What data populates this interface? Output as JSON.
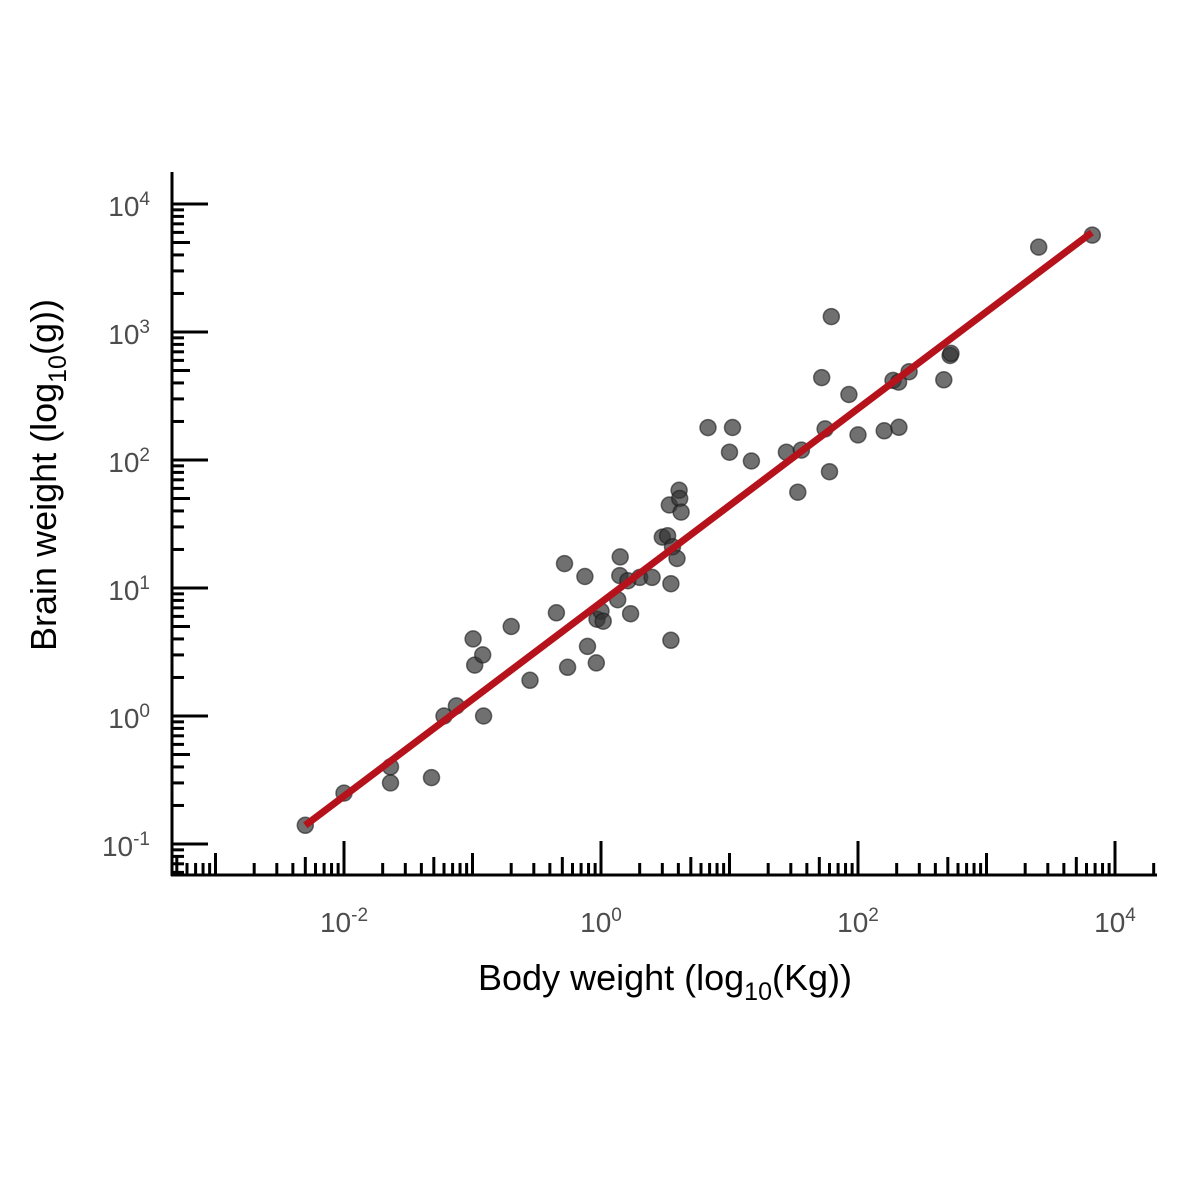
{
  "chart_data": {
    "type": "scatter",
    "title": "",
    "xlabel": {
      "main": "Body weight (log",
      "sub": "10",
      "end": "(Kg))"
    },
    "ylabel": {
      "main": "Brain weight (log",
      "sub": "10",
      "end": "(g))"
    },
    "x_scale": "log10",
    "y_scale": "log10",
    "xlim": [
      0.00045,
      25000
    ],
    "ylim": [
      0.055,
      17000
    ],
    "x_ticks": [
      {
        "value": 0.01,
        "base": "10",
        "exp": "-2"
      },
      {
        "value": 1,
        "base": "10",
        "exp": "0"
      },
      {
        "value": 100,
        "base": "10",
        "exp": "2"
      },
      {
        "value": 10000,
        "base": "10",
        "exp": "4"
      }
    ],
    "y_ticks": [
      {
        "value": 0.1,
        "base": "10",
        "exp": "-1"
      },
      {
        "value": 1,
        "base": "10",
        "exp": "0"
      },
      {
        "value": 10,
        "base": "10",
        "exp": "1"
      },
      {
        "value": 100,
        "base": "10",
        "exp": "2"
      },
      {
        "value": 1000,
        "base": "10",
        "exp": "3"
      },
      {
        "value": 10000,
        "base": "10",
        "exp": "4"
      }
    ],
    "grid": false,
    "point_color": "#333333",
    "point_opacity": 0.7,
    "fit_line": {
      "color": "#B5121B",
      "x": [
        0.005,
        6600
      ],
      "y": [
        0.14,
        6000
      ]
    },
    "points": [
      [
        0.005,
        0.14
      ],
      [
        0.01,
        0.25
      ],
      [
        0.023,
        0.4
      ],
      [
        0.023,
        0.3
      ],
      [
        0.048,
        0.33
      ],
      [
        0.06,
        1.0
      ],
      [
        0.075,
        1.2
      ],
      [
        0.101,
        4.0
      ],
      [
        0.104,
        2.5
      ],
      [
        0.12,
        3.0
      ],
      [
        0.122,
        1.0
      ],
      [
        0.2,
        5.0
      ],
      [
        0.28,
        1.9
      ],
      [
        0.45,
        6.4
      ],
      [
        0.52,
        15.5
      ],
      [
        0.55,
        2.4
      ],
      [
        0.75,
        12.3
      ],
      [
        0.785,
        3.5
      ],
      [
        0.92,
        2.6
      ],
      [
        0.93,
        5.7
      ],
      [
        1.0,
        6.6
      ],
      [
        1.04,
        5.5
      ],
      [
        1.35,
        8.1
      ],
      [
        1.4,
        12.5
      ],
      [
        1.41,
        17.5
      ],
      [
        1.62,
        11.4
      ],
      [
        1.7,
        6.3
      ],
      [
        2.0,
        12.1
      ],
      [
        2.5,
        12.1
      ],
      [
        3.0,
        25.0
      ],
      [
        3.3,
        25.6
      ],
      [
        3.4,
        44.5
      ],
      [
        3.5,
        10.8
      ],
      [
        3.5,
        3.9
      ],
      [
        3.6,
        21.0
      ],
      [
        3.9,
        17.0
      ],
      [
        4.05,
        58.0
      ],
      [
        4.1,
        50.0
      ],
      [
        4.2,
        39.2
      ],
      [
        6.8,
        179.0
      ],
      [
        10.0,
        115.0
      ],
      [
        10.55,
        179.5
      ],
      [
        14.8,
        98.2
      ],
      [
        27.7,
        115.0
      ],
      [
        34.0,
        56.0
      ],
      [
        36.3,
        119.5
      ],
      [
        52.2,
        440.0
      ],
      [
        55.5,
        175.0
      ],
      [
        60.0,
        81.0
      ],
      [
        62.0,
        1320.0
      ],
      [
        85.0,
        325.0
      ],
      [
        100.0,
        157.0
      ],
      [
        160.0,
        169.0
      ],
      [
        187.1,
        419.0
      ],
      [
        207.0,
        406.0
      ],
      [
        208.0,
        180.0
      ],
      [
        250.0,
        490.0
      ],
      [
        465.0,
        423.0
      ],
      [
        521.0,
        655.0
      ],
      [
        529.0,
        680.0
      ],
      [
        2547.0,
        4603.0
      ],
      [
        6654.0,
        5712.0
      ]
    ]
  }
}
